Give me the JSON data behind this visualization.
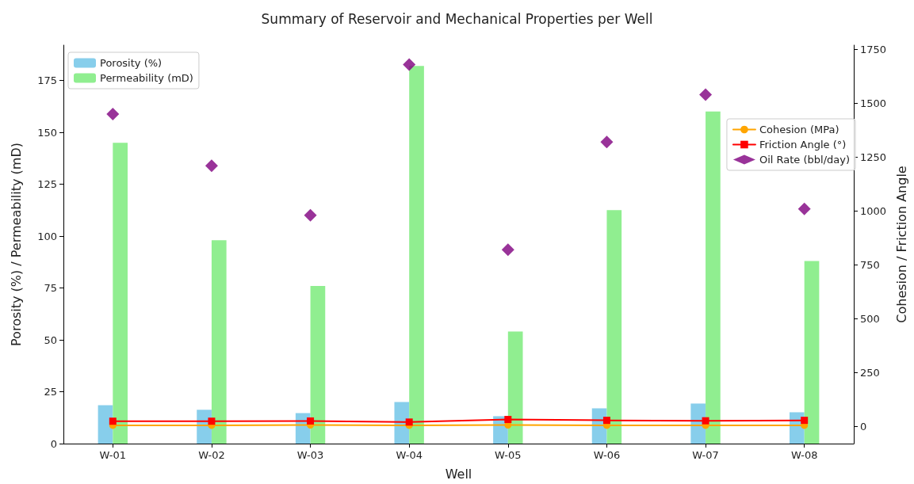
{
  "chart_data": {
    "type": "bar",
    "title": "Summary of Reservoir and Mechanical Properties per Well",
    "xlabel": "Well",
    "ylabel": "Porosity (%) / Permeability (mD)",
    "y2label": "Cohesion / Friction Angle",
    "categories": [
      "W-01",
      "W-02",
      "W-03",
      "W-04",
      "W-05",
      "W-06",
      "W-07",
      "W-08"
    ],
    "series": [
      {
        "name": "Porosity (%)",
        "color": "#87ceeb",
        "values": [
          18.5,
          16.3,
          14.7,
          20,
          13.2,
          17,
          19.3,
          15.1
        ]
      },
      {
        "name": "Permeability (mD)",
        "color": "#90ee90",
        "values": [
          145,
          98,
          76,
          182,
          54,
          112.5,
          160,
          88
        ]
      },
      {
        "name": "Cohesion (MPa)",
        "type": "line",
        "axis": "y2",
        "marker": "circle",
        "line_style": "solid",
        "color": "#ffa500",
        "values": [
          5,
          5,
          6,
          5,
          6,
          5,
          5,
          5
        ]
      },
      {
        "name": "Friction Angle (°)",
        "type": "line",
        "axis": "y2",
        "marker": "square",
        "line_style": "solid",
        "color": "#ff0000",
        "values": [
          24,
          24,
          25,
          20,
          32,
          28,
          26,
          28
        ]
      },
      {
        "name": "Oil Rate (bbl/day)",
        "type": "scatter",
        "axis": "y2",
        "marker": "diamond",
        "color": "#800080",
        "values": [
          1450,
          1210,
          980,
          1680,
          820,
          1320,
          1540,
          1010
        ]
      }
    ],
    "ylim": [
      0,
      192
    ],
    "yticks": [
      0,
      25,
      50,
      75,
      100,
      125,
      150,
      175
    ],
    "y2lim": [
      -80,
      1770
    ],
    "y2ticks": [
      0,
      250,
      500,
      750,
      1000,
      1250,
      1500,
      1750
    ],
    "grid": false,
    "legend": [
      "top left",
      "right"
    ]
  }
}
